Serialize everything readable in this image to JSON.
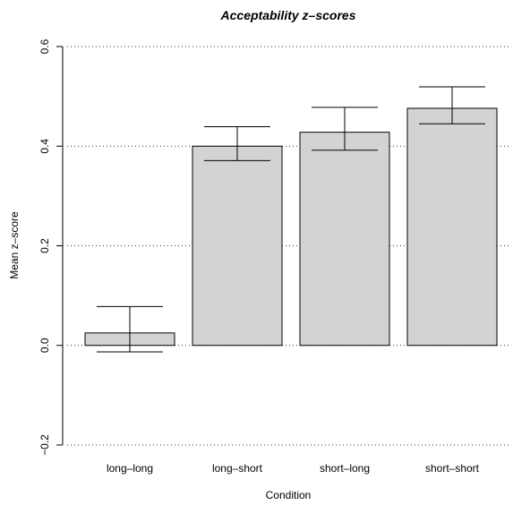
{
  "chart_data": {
    "type": "bar",
    "title": "Acceptability z–scores",
    "xlabel": "Condition",
    "ylabel": "Mean z–score",
    "categories": [
      "long–long",
      "long–short",
      "short–long",
      "short–short"
    ],
    "values": [
      0.025,
      0.4,
      0.428,
      0.476
    ],
    "error_lower": [
      -0.013,
      0.371,
      0.392,
      0.445
    ],
    "error_upper": [
      0.078,
      0.439,
      0.478,
      0.519
    ],
    "ylim": [
      -0.2,
      0.6
    ],
    "yticks": [
      -0.2,
      0.0,
      0.2,
      0.4,
      0.6
    ],
    "ytick_labels": [
      "−0.2",
      "0.0",
      "0.2",
      "0.4",
      "0.6"
    ],
    "grid": "horizontal-dotted",
    "bar_color": "#d3d3d3"
  }
}
